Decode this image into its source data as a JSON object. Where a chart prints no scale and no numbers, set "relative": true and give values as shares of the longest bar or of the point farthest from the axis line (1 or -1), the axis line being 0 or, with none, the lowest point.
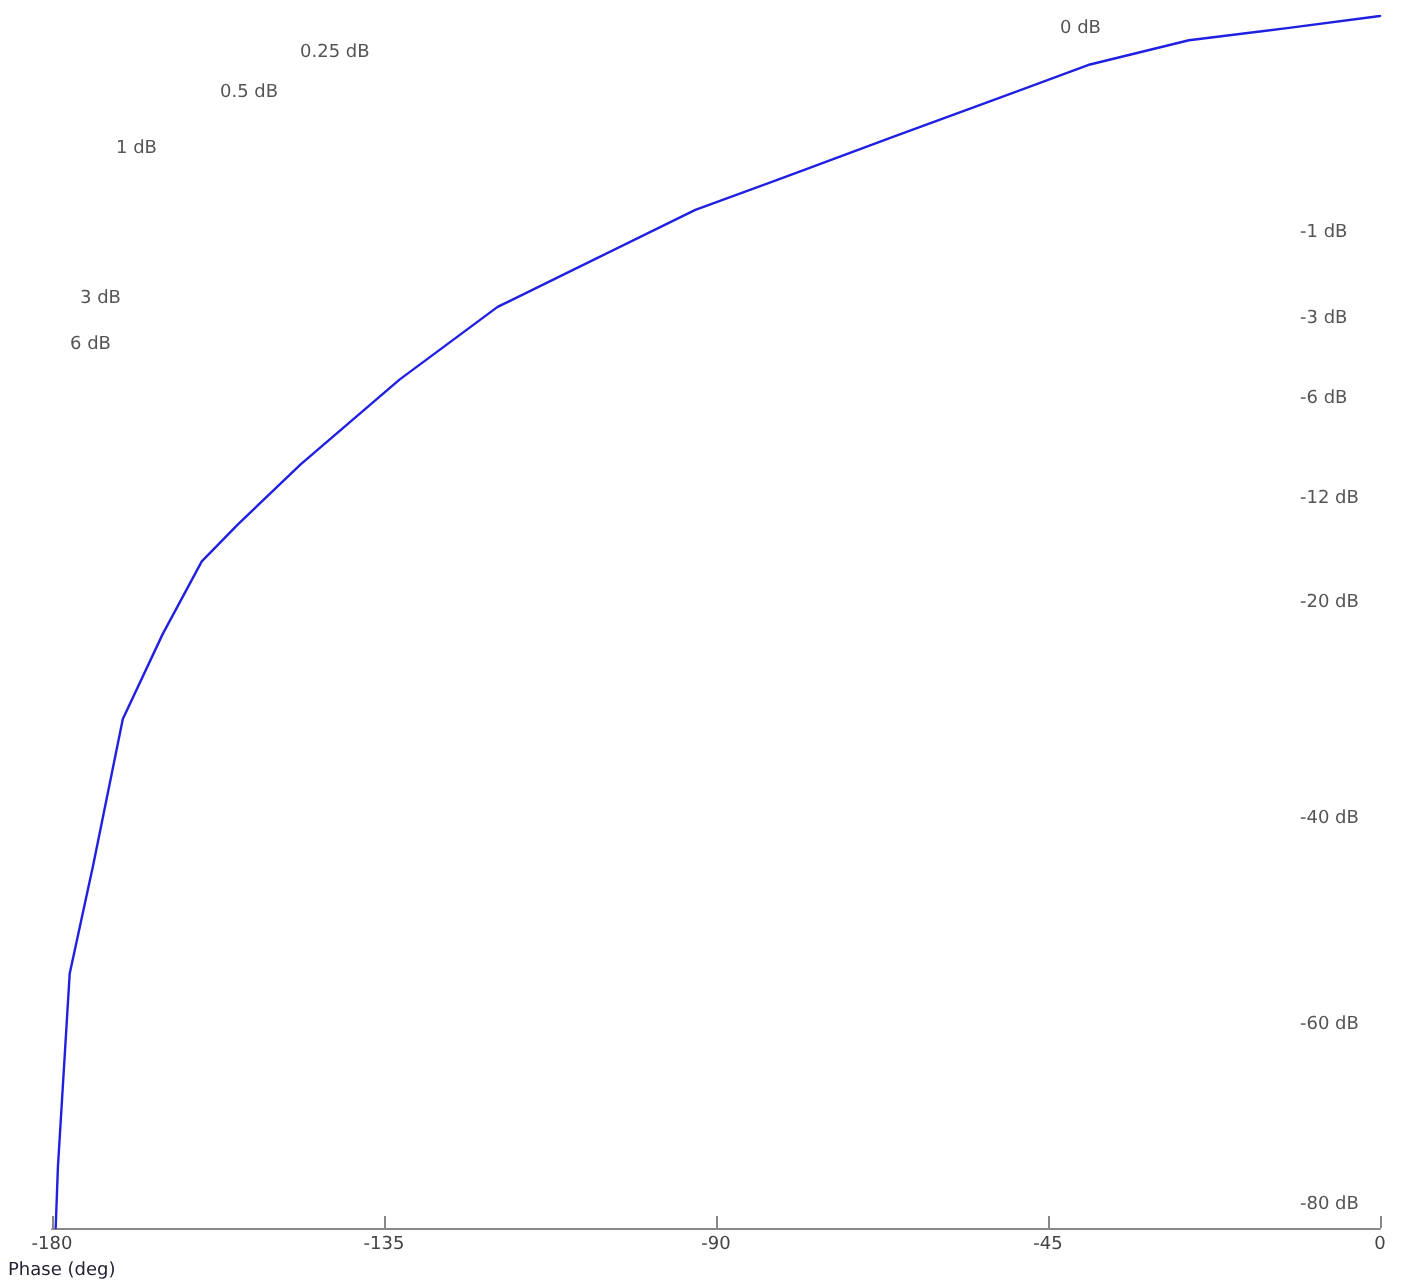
{
  "chart_data": {
    "type": "line",
    "xlabel": "Phase (deg)",
    "relative": true,
    "marker": "none",
    "line_style": "solid",
    "grid": false,
    "xlim": [
      -180,
      0
    ],
    "xticks": [
      -180,
      -135,
      -90,
      -45,
      0
    ],
    "x": [
      -179.5,
      -179.2,
      -177.6,
      -174.4,
      -170.4,
      -165,
      -159.7,
      -154.9,
      -146.3,
      -132.9,
      -119.6,
      -106.2,
      -92.8,
      -79.4,
      -66.1,
      -52.7,
      -39.3,
      -25.9,
      -12.6,
      0
    ],
    "series": [
      {
        "color": "#2020e0",
        "values": [
          0,
          0.05,
          0.21,
          0.3,
          0.42,
          0.49,
          0.55,
          0.58,
          0.63,
          0.7,
          0.76,
          0.8,
          0.84,
          0.87,
          0.9,
          0.93,
          0.96,
          0.98,
          0.99,
          1
        ]
      }
    ],
    "annotations": [
      "0 dB",
      "0.25 dB",
      "0.5 dB",
      "1 dB",
      "3 dB",
      "6 dB",
      "-1 dB",
      "-3 dB",
      "-6 dB",
      "-12 dB",
      "-20 dB",
      "-40 dB",
      "-60 dB",
      "-80 dB"
    ]
  }
}
